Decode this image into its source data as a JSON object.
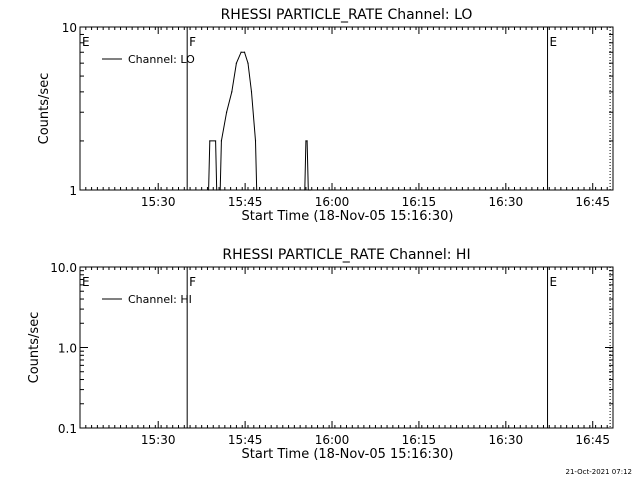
{
  "footer_timestamp": "21-Oct-2021 07:12",
  "chart_data": [
    {
      "type": "line",
      "title": "RHESSI PARTICLE_RATE Channel: LO",
      "xlabel": "Start Time (18-Nov-05 15:16:30)",
      "ylabel": "Counts/sec",
      "x_unit": "minutes since 15:16:30",
      "xlim": [
        0,
        92
      ],
      "ylim": [
        1,
        10
      ],
      "yscale": "log",
      "x_ticks": [
        {
          "value": 13.5,
          "label": "15:30"
        },
        {
          "value": 28.5,
          "label": "15:45"
        },
        {
          "value": 43.5,
          "label": "16:00"
        },
        {
          "value": 58.5,
          "label": "16:15"
        },
        {
          "value": 73.5,
          "label": "16:30"
        },
        {
          "value": 88.5,
          "label": "16:45"
        }
      ],
      "y_ticks": [
        {
          "value": 1,
          "label": "1"
        },
        {
          "value": 10,
          "label": "10"
        }
      ],
      "legend": {
        "label": "Channel: LO",
        "position": "top-left"
      },
      "markers": [
        {
          "x": 0,
          "label": "E",
          "style": "solid"
        },
        {
          "x": 18.5,
          "label": "F",
          "style": "solid"
        },
        {
          "x": 80.7,
          "label": "E",
          "style": "solid"
        },
        {
          "x": 91.5,
          "label": "",
          "style": "dotted"
        }
      ],
      "series": [
        {
          "name": "Channel: LO",
          "x": [
            22.2,
            22.4,
            23.4,
            23.6,
            24.2,
            24.4,
            25.3,
            26.2,
            27.0,
            27.8,
            28.4,
            29.0,
            29.6,
            30.3,
            30.5,
            38.8,
            39.0,
            39.2,
            39.4,
            39.6,
            39.8
          ],
          "y": [
            1,
            2,
            2,
            1,
            1,
            2,
            3,
            4,
            6,
            7,
            7,
            6,
            4,
            2,
            1,
            1,
            2,
            2,
            1,
            1,
            1
          ]
        }
      ]
    },
    {
      "type": "line",
      "title": "RHESSI PARTICLE_RATE Channel: HI",
      "xlabel": "Start Time (18-Nov-05 15:16:30)",
      "ylabel": "Counts/sec",
      "x_unit": "minutes since 15:16:30",
      "xlim": [
        0,
        92
      ],
      "ylim": [
        0.1,
        10
      ],
      "yscale": "log",
      "x_ticks": [
        {
          "value": 13.5,
          "label": "15:30"
        },
        {
          "value": 28.5,
          "label": "15:45"
        },
        {
          "value": 43.5,
          "label": "16:00"
        },
        {
          "value": 58.5,
          "label": "16:15"
        },
        {
          "value": 73.5,
          "label": "16:30"
        },
        {
          "value": 88.5,
          "label": "16:45"
        }
      ],
      "y_ticks": [
        {
          "value": 0.1,
          "label": "0.1"
        },
        {
          "value": 1,
          "label": "1.0"
        },
        {
          "value": 10,
          "label": "10.0"
        }
      ],
      "legend": {
        "label": "Channel: HI",
        "position": "top-left"
      },
      "markers": [
        {
          "x": 0,
          "label": "E",
          "style": "solid"
        },
        {
          "x": 18.5,
          "label": "F",
          "style": "solid"
        },
        {
          "x": 80.7,
          "label": "E",
          "style": "solid"
        },
        {
          "x": 91.5,
          "label": "",
          "style": "dotted"
        }
      ],
      "series": [
        {
          "name": "Channel: HI",
          "x": [],
          "y": []
        }
      ]
    }
  ]
}
